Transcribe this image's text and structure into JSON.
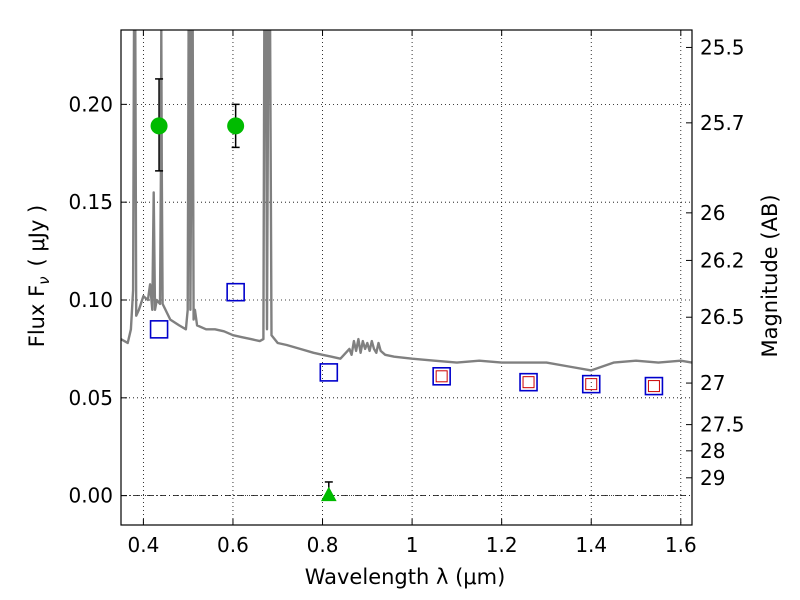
{
  "chart_data": {
    "type": "scatter",
    "xlabel": "Wavelength  λ (μm)",
    "ylabel": "Flux  F",
    "ylabel_sub": "ν",
    "ylabel_unit": "( μJy )",
    "ylabel_right": "Magnitude (AB)",
    "xlim": [
      0.35,
      1.625
    ],
    "ylim": [
      -0.015,
      0.238
    ],
    "grid": true,
    "x_ticks": [
      {
        "value": 0.4,
        "label": "0.4"
      },
      {
        "value": 0.6,
        "label": "0.6"
      },
      {
        "value": 0.8,
        "label": "0.8"
      },
      {
        "value": 1.0,
        "label": "1"
      },
      {
        "value": 1.2,
        "label": "1.2"
      },
      {
        "value": 1.4,
        "label": "1.4"
      },
      {
        "value": 1.6,
        "label": "1.6"
      }
    ],
    "y_ticks": [
      {
        "value": 0.0,
        "label": "0.00"
      },
      {
        "value": 0.05,
        "label": "0.05"
      },
      {
        "value": 0.1,
        "label": "0.10"
      },
      {
        "value": 0.15,
        "label": "0.15"
      },
      {
        "value": 0.2,
        "label": "0.20"
      }
    ],
    "mag_ticks": [
      {
        "value": 25.5,
        "label": "25.5"
      },
      {
        "value": 25.7,
        "label": "25.7"
      },
      {
        "value": 26,
        "label": "26"
      },
      {
        "value": 26.2,
        "label": "26.2"
      },
      {
        "value": 26.5,
        "label": "26.5"
      },
      {
        "value": 27,
        "label": "27"
      },
      {
        "value": 27.5,
        "label": "27.5"
      },
      {
        "value": 28,
        "label": "28"
      },
      {
        "value": 29,
        "label": "29"
      }
    ],
    "colors": {
      "observed": "#00bb00",
      "model_blue": "#0000cc",
      "model_red": "#cc0000",
      "spectrum": "#808080",
      "errorbar": "#000000"
    },
    "observed_points": [
      {
        "x": 0.435,
        "y": 0.189,
        "yerr_low": 0.023,
        "yerr_high": 0.024,
        "marker": "circle"
      },
      {
        "x": 0.606,
        "y": 0.189,
        "yerr_low": 0.011,
        "yerr_high": 0.011,
        "marker": "circle"
      },
      {
        "x": 0.814,
        "y": 0.0,
        "yerr_low": 0.0,
        "yerr_high": 0.007,
        "marker": "triangle"
      }
    ],
    "model_blue_squares": [
      {
        "x": 0.435,
        "y": 0.085
      },
      {
        "x": 0.606,
        "y": 0.104
      },
      {
        "x": 0.814,
        "y": 0.063
      },
      {
        "x": 1.066,
        "y": 0.061
      },
      {
        "x": 1.26,
        "y": 0.058
      },
      {
        "x": 1.4,
        "y": 0.057
      },
      {
        "x": 1.54,
        "y": 0.056
      }
    ],
    "model_red_squares": [
      {
        "x": 1.066,
        "y": 0.061
      },
      {
        "x": 1.26,
        "y": 0.058
      },
      {
        "x": 1.4,
        "y": 0.057
      },
      {
        "x": 1.54,
        "y": 0.056
      }
    ],
    "spectrum": [
      [
        0.35,
        0.08
      ],
      [
        0.365,
        0.078
      ],
      [
        0.372,
        0.085
      ],
      [
        0.377,
        0.105
      ],
      [
        0.379,
        0.238
      ],
      [
        0.382,
        0.238
      ],
      [
        0.384,
        0.092
      ],
      [
        0.39,
        0.095
      ],
      [
        0.4,
        0.102
      ],
      [
        0.41,
        0.1
      ],
      [
        0.415,
        0.108
      ],
      [
        0.42,
        0.095
      ],
      [
        0.423,
        0.155
      ],
      [
        0.426,
        0.095
      ],
      [
        0.43,
        0.1
      ],
      [
        0.437,
        0.098
      ],
      [
        0.439,
        0.165
      ],
      [
        0.44,
        0.238
      ],
      [
        0.441,
        0.165
      ],
      [
        0.443,
        0.098
      ],
      [
        0.46,
        0.09
      ],
      [
        0.48,
        0.087
      ],
      [
        0.495,
        0.085
      ],
      [
        0.499,
        0.095
      ],
      [
        0.501,
        0.238
      ],
      [
        0.503,
        0.238
      ],
      [
        0.505,
        0.095
      ],
      [
        0.508,
        0.238
      ],
      [
        0.51,
        0.238
      ],
      [
        0.512,
        0.09
      ],
      [
        0.515,
        0.095
      ],
      [
        0.52,
        0.087
      ],
      [
        0.54,
        0.085
      ],
      [
        0.56,
        0.085
      ],
      [
        0.58,
        0.084
      ],
      [
        0.6,
        0.082
      ],
      [
        0.62,
        0.081
      ],
      [
        0.64,
        0.08
      ],
      [
        0.66,
        0.079
      ],
      [
        0.668,
        0.08
      ],
      [
        0.67,
        0.238
      ],
      [
        0.674,
        0.238
      ],
      [
        0.676,
        0.085
      ],
      [
        0.679,
        0.238
      ],
      [
        0.683,
        0.238
      ],
      [
        0.686,
        0.082
      ],
      [
        0.7,
        0.078
      ],
      [
        0.72,
        0.077
      ],
      [
        0.75,
        0.075
      ],
      [
        0.78,
        0.073
      ],
      [
        0.8,
        0.072
      ],
      [
        0.82,
        0.071
      ],
      [
        0.84,
        0.07
      ],
      [
        0.86,
        0.075
      ],
      [
        0.865,
        0.072
      ],
      [
        0.87,
        0.079
      ],
      [
        0.875,
        0.074
      ],
      [
        0.88,
        0.08
      ],
      [
        0.885,
        0.073
      ],
      [
        0.89,
        0.079
      ],
      [
        0.895,
        0.075
      ],
      [
        0.9,
        0.078
      ],
      [
        0.905,
        0.074
      ],
      [
        0.91,
        0.079
      ],
      [
        0.915,
        0.075
      ],
      [
        0.92,
        0.073
      ],
      [
        0.925,
        0.078
      ],
      [
        0.93,
        0.074
      ],
      [
        0.94,
        0.072
      ],
      [
        0.96,
        0.071
      ],
      [
        1.0,
        0.07
      ],
      [
        1.05,
        0.069
      ],
      [
        1.1,
        0.068
      ],
      [
        1.15,
        0.069
      ],
      [
        1.2,
        0.068
      ],
      [
        1.25,
        0.068
      ],
      [
        1.3,
        0.068
      ],
      [
        1.35,
        0.066
      ],
      [
        1.4,
        0.064
      ],
      [
        1.45,
        0.068
      ],
      [
        1.5,
        0.069
      ],
      [
        1.55,
        0.068
      ],
      [
        1.6,
        0.069
      ],
      [
        1.625,
        0.068
      ]
    ]
  }
}
